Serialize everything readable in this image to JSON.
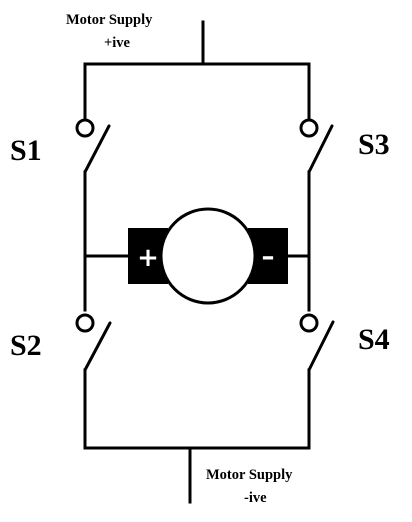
{
  "supply": {
    "top_line1": "Motor Supply",
    "top_line2": "+ive",
    "bottom_line1": "Motor Supply",
    "bottom_line2": "-ive"
  },
  "switches": {
    "s1": "S1",
    "s2": "S2",
    "s3": "S3",
    "s4": "S4"
  },
  "motor": {
    "plus_terminal": "+",
    "minus_terminal": "–"
  },
  "colors": {
    "line": "#000000",
    "background": "#ffffff",
    "terminal_fill": "#000000"
  }
}
